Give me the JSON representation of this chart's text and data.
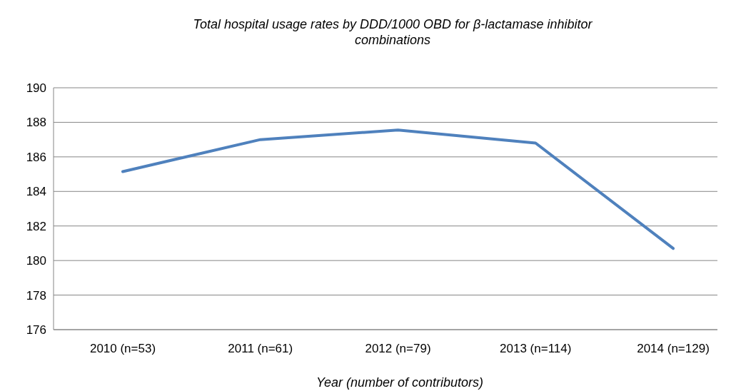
{
  "chart_data": {
    "type": "line",
    "title": "Total hospital usage rates by DDD/1000 OBD for β-lactamase inhibitor combinations",
    "xlabel": "Year (number of contributors)",
    "categories": [
      "2010 (n=53)",
      "2011 (n=61)",
      "2012 (n=79)",
      "2013 (n=114)",
      "2014 (n=129)"
    ],
    "series": [
      {
        "color": "#4f81bd",
        "values": [
          185.15,
          187.0,
          187.55,
          186.8,
          180.7
        ]
      }
    ],
    "ylim": [
      176,
      190
    ],
    "yticks": [
      176,
      178,
      180,
      182,
      184,
      186,
      188,
      190
    ],
    "grid": "y",
    "line_style": "solid"
  }
}
